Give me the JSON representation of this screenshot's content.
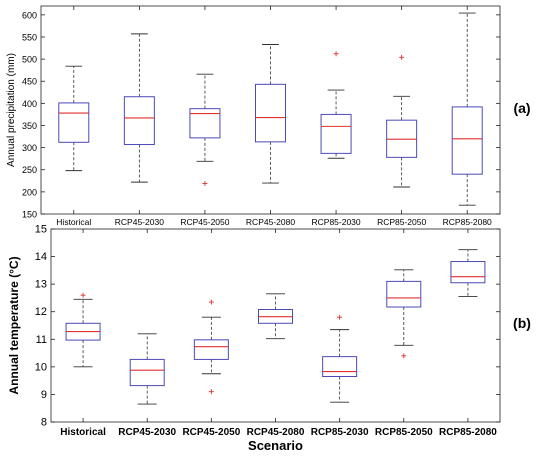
{
  "chart_data": [
    {
      "type": "boxplot",
      "panel_label": "(a)",
      "ylabel": "Annual precipitation (mm)",
      "xlabel": "",
      "ylim": [
        150,
        620
      ],
      "yticks": [
        150,
        200,
        250,
        300,
        350,
        400,
        450,
        500,
        550,
        600
      ],
      "grid": false,
      "colors": {
        "box": "#4a4ab8",
        "median": "#e03030",
        "whisker": "#333333",
        "outlier": "#e03030"
      },
      "categories": [
        "Historical",
        "RCP45-2030",
        "RCP45-2050",
        "RCP45-2080",
        "RCP85-2030",
        "RCP85-2050",
        "RCP85-2080"
      ],
      "boxes": [
        {
          "min": 248,
          "q1": 312,
          "median": 378,
          "q3": 401,
          "max": 484,
          "outliers": []
        },
        {
          "min": 222,
          "q1": 307,
          "median": 367,
          "q3": 415,
          "max": 557,
          "outliers": []
        },
        {
          "min": 269,
          "q1": 322,
          "median": 377,
          "q3": 388,
          "max": 466,
          "outliers": [
            219
          ]
        },
        {
          "min": 220,
          "q1": 313,
          "median": 368,
          "q3": 443,
          "max": 533,
          "outliers": []
        },
        {
          "min": 276,
          "q1": 287,
          "median": 348,
          "q3": 375,
          "max": 430,
          "outliers": [
            512
          ]
        },
        {
          "min": 211,
          "q1": 278,
          "median": 319,
          "q3": 362,
          "max": 416,
          "outliers": [
            504
          ]
        },
        {
          "min": 170,
          "q1": 240,
          "median": 320,
          "q3": 392,
          "max": 604,
          "outliers": []
        }
      ]
    },
    {
      "type": "boxplot",
      "panel_label": "(b)",
      "ylabel": "Annual temperature (°C)",
      "xlabel": "Scenario",
      "ylim": [
        8,
        15
      ],
      "yticks": [
        8,
        9,
        10,
        11,
        12,
        13,
        14,
        15
      ],
      "grid": false,
      "colors": {
        "box": "#4a4ab8",
        "median": "#e03030",
        "whisker": "#333333",
        "outlier": "#e03030"
      },
      "categories": [
        "Historical",
        "RCP45-2030",
        "RCP45-2050",
        "RCP45-2080",
        "RCP85-2030",
        "RCP85-2050",
        "RCP85-2080"
      ],
      "boxes": [
        {
          "min": 10.0,
          "q1": 10.97,
          "median": 11.28,
          "q3": 11.58,
          "max": 12.45,
          "outliers": [
            12.6
          ]
        },
        {
          "min": 8.65,
          "q1": 9.32,
          "median": 9.88,
          "q3": 10.27,
          "max": 11.2,
          "outliers": []
        },
        {
          "min": 9.75,
          "q1": 10.27,
          "median": 10.73,
          "q3": 10.98,
          "max": 11.8,
          "outliers": [
            9.1,
            12.35
          ]
        },
        {
          "min": 11.02,
          "q1": 11.58,
          "median": 11.82,
          "q3": 12.08,
          "max": 12.65,
          "outliers": []
        },
        {
          "min": 8.72,
          "q1": 9.65,
          "median": 9.83,
          "q3": 10.37,
          "max": 11.35,
          "outliers": [
            11.8
          ]
        },
        {
          "min": 10.78,
          "q1": 12.17,
          "median": 12.5,
          "q3": 13.1,
          "max": 13.52,
          "outliers": [
            10.4
          ]
        },
        {
          "min": 12.55,
          "q1": 13.05,
          "median": 13.27,
          "q3": 13.82,
          "max": 14.25,
          "outliers": []
        }
      ]
    }
  ]
}
